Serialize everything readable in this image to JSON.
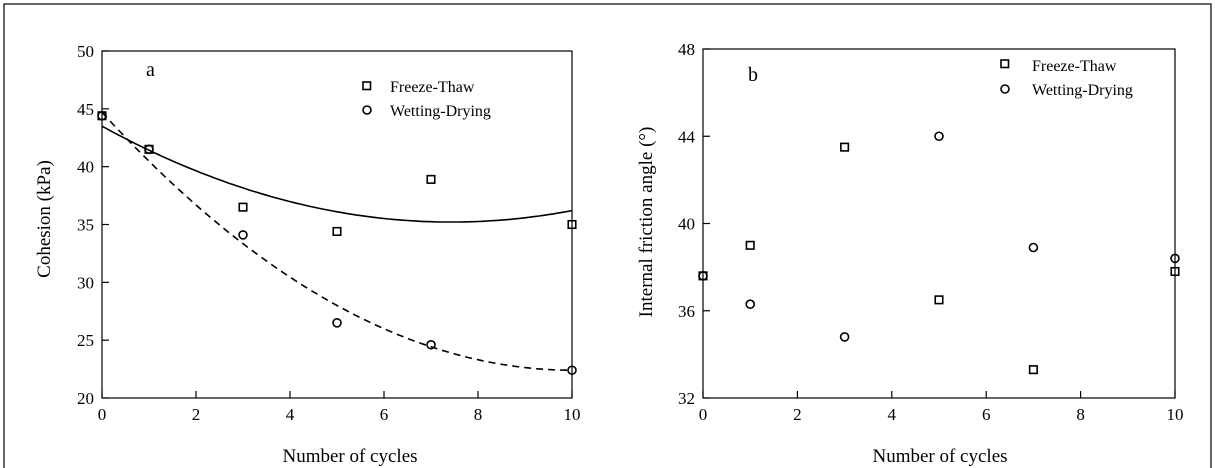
{
  "chart_data": [
    {
      "type": "scatter",
      "panel_label": "a",
      "xlabel": "Number of cycles",
      "ylabel": "Cohesion (kPa)",
      "xlim": [
        0,
        10
      ],
      "ylim": [
        20,
        50
      ],
      "xticks": [
        "0",
        "2",
        "4",
        "6",
        "8",
        "10"
      ],
      "yticks": [
        "20",
        "25",
        "30",
        "35",
        "40",
        "45",
        "50"
      ],
      "legend_position": "top-right",
      "series": [
        {
          "name": "Freeze-Thaw",
          "marker": "square",
          "x": [
            0,
            1,
            3,
            5,
            7,
            10
          ],
          "y": [
            44.4,
            41.5,
            36.5,
            34.4,
            38.9,
            35.0
          ],
          "fit": {
            "style": "solid",
            "coeffs": [
              43.5,
              -2.23,
              0.15
            ]
          }
        },
        {
          "name": "Wetting-Drying",
          "marker": "circle",
          "x": [
            0,
            1,
            3,
            5,
            7,
            10
          ],
          "y": [
            44.4,
            41.5,
            34.1,
            26.5,
            24.6,
            22.4
          ],
          "fit": {
            "style": "dashed",
            "coeffs": [
              44.7,
              -4.45,
              0.222
            ]
          }
        }
      ]
    },
    {
      "type": "scatter",
      "panel_label": "b",
      "xlabel": "Number of cycles",
      "ylabel": "Internal friction angle (°)",
      "xlim": [
        0,
        10
      ],
      "ylim": [
        32,
        48
      ],
      "xticks": [
        "0",
        "2",
        "4",
        "6",
        "8",
        "10"
      ],
      "yticks": [
        "32",
        "36",
        "40",
        "44",
        "48"
      ],
      "legend_position": "top-right",
      "series": [
        {
          "name": "Freeze-Thaw",
          "marker": "square",
          "x": [
            0,
            1,
            3,
            5,
            7,
            10
          ],
          "y": [
            37.6,
            39.0,
            43.5,
            36.5,
            33.3,
            37.8
          ]
        },
        {
          "name": "Wetting-Drying",
          "marker": "circle",
          "x": [
            0,
            1,
            3,
            5,
            7,
            10
          ],
          "y": [
            37.6,
            36.3,
            34.8,
            44.0,
            38.9,
            38.4
          ]
        }
      ]
    }
  ]
}
